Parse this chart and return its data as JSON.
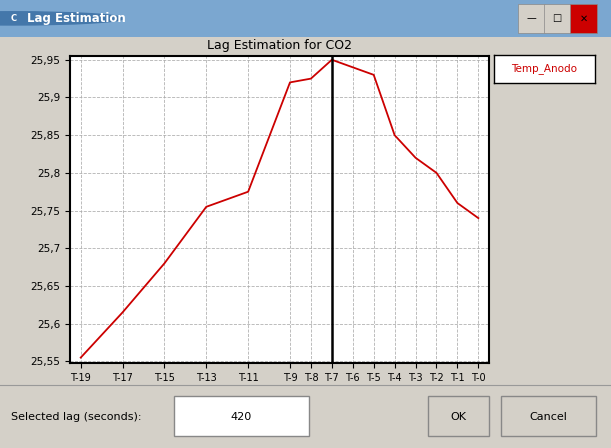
{
  "title": "Lag Estimation for CO2",
  "x_labels": [
    "T-19",
    "T-17",
    "T-15",
    "T-13",
    "T-11",
    "T-9",
    "T-8",
    "T-7",
    "T-6",
    "T-5",
    "T-4",
    "T-3",
    "T-2",
    "T-1",
    "T-0"
  ],
  "x_positions": [
    0,
    2,
    4,
    6,
    8,
    10,
    11,
    12,
    13,
    14,
    15,
    16,
    17,
    18,
    19
  ],
  "y_values": [
    25.555,
    25.615,
    25.68,
    25.755,
    25.775,
    25.92,
    25.925,
    25.95,
    25.94,
    25.93,
    25.85,
    25.82,
    25.8,
    25.76,
    25.74
  ],
  "y_min": 25.55,
  "y_max": 25.95,
  "y_ticks": [
    25.55,
    25.6,
    25.65,
    25.7,
    25.75,
    25.8,
    25.85,
    25.9,
    25.95
  ],
  "vline_x": 12,
  "line_color": "#cc0000",
  "vline_color": "#000000",
  "grid_color": "#aaaaaa",
  "bg_color": "#d4d0c8",
  "plot_bg_color": "#ffffff",
  "legend_label": "Temp_Anodo",
  "legend_text_color": "#cc0000",
  "title_bar_color": "#7ba7d0",
  "title_bar_icon_color": "#4477aa",
  "window_title": "Lag Estimation",
  "selected_lag_label": "Selected lag (seconds):",
  "selected_lag_value": "420",
  "ok_label": "OK",
  "cancel_label": "Cancel",
  "figwidth": 6.11,
  "figheight": 4.48,
  "dpi": 100
}
